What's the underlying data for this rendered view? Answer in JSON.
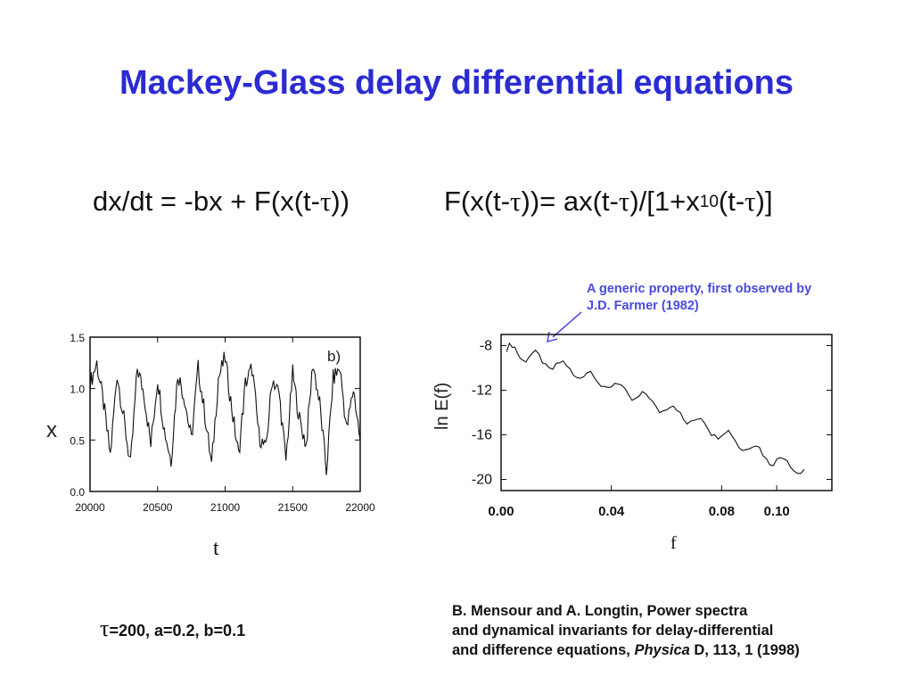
{
  "slide": {
    "title": "Mackey-Glass delay differential equations",
    "equation_left": {
      "a": "dx/dt = -bx + F(x(t-",
      "tau": "τ",
      "b": "))"
    },
    "equation_right": {
      "a": "F(x(t-",
      "tau1": "τ",
      "b": "))= ax(t-",
      "tau2": "τ",
      "c": ")/[1+x",
      "sup": "10",
      "d": "(t-",
      "tau3": "τ",
      "e": ")]"
    },
    "annotation": {
      "line1": "A generic property, first observed by",
      "line2": "J.D. Farmer (1982)"
    },
    "params": {
      "tau": "τ",
      "text": "=200,   a=0.2, b=0.1"
    },
    "reference": {
      "line1": "B. Mensour and A. Longtin, Power spectra",
      "line2": "and dynamical invariants for delay-differential",
      "line3_a": "and difference equations, ",
      "line3_journal": "Physica",
      "line3_b": " D, 113, 1 (1998)"
    },
    "accent_color": "#2b2bd3",
    "annotation_color": "#4a4ae0"
  },
  "chart_data": [
    {
      "type": "line",
      "panel_label": "b)",
      "xlabel": "t",
      "ylabel": "x",
      "xlim": [
        20000,
        22000
      ],
      "ylim": [
        0.0,
        1.5
      ],
      "xticks": [
        "20000",
        "20500",
        "21000",
        "21500",
        "22000"
      ],
      "yticks": [
        "0.0",
        "0.5",
        "1.0",
        "1.5"
      ],
      "series": [
        {
          "x": [
            20000,
            20050,
            20100,
            20150,
            20200,
            20250,
            20300,
            20350,
            20400,
            20450,
            20500,
            20550,
            20600,
            20650,
            20700,
            20750,
            20800,
            20850,
            20900,
            20950,
            21000,
            21050,
            21100,
            21150,
            21200,
            21250,
            21300,
            21350,
            21400,
            21450,
            21500,
            21550,
            21600,
            21650,
            21700,
            21750,
            21800,
            21850,
            21900,
            21950,
            22000
          ],
          "y": [
            1.05,
            1.25,
            0.85,
            0.35,
            1.15,
            0.7,
            0.25,
            1.2,
            0.95,
            0.45,
            1.1,
            0.6,
            0.3,
            1.15,
            0.9,
            0.5,
            1.2,
            0.75,
            0.25,
            1.1,
            1.3,
            0.8,
            0.35,
            1.05,
            1.2,
            0.55,
            0.4,
            1.1,
            0.95,
            0.3,
            1.15,
            0.7,
            0.45,
            1.25,
            0.85,
            0.2,
            1.1,
            1.2,
            0.6,
            1.0,
            0.5
          ]
        }
      ]
    },
    {
      "type": "line",
      "xlabel": "f",
      "ylabel": "ln E(f)",
      "xlim": [
        0.0,
        0.12
      ],
      "ylim": [
        -21,
        -7
      ],
      "xticks": [
        "0.00",
        "0.04",
        "0.08",
        "0.10"
      ],
      "yticks": [
        "-8",
        "-12",
        "-16",
        "-20"
      ],
      "series": [
        {
          "x": [
            0.002,
            0.01,
            0.02,
            0.03,
            0.04,
            0.05,
            0.06,
            0.07,
            0.08,
            0.09,
            0.1,
            0.11
          ],
          "y": [
            -8.3,
            -9.0,
            -9.8,
            -10.6,
            -11.6,
            -12.6,
            -13.6,
            -14.7,
            -15.9,
            -17.1,
            -18.3,
            -19.1
          ]
        }
      ]
    }
  ]
}
